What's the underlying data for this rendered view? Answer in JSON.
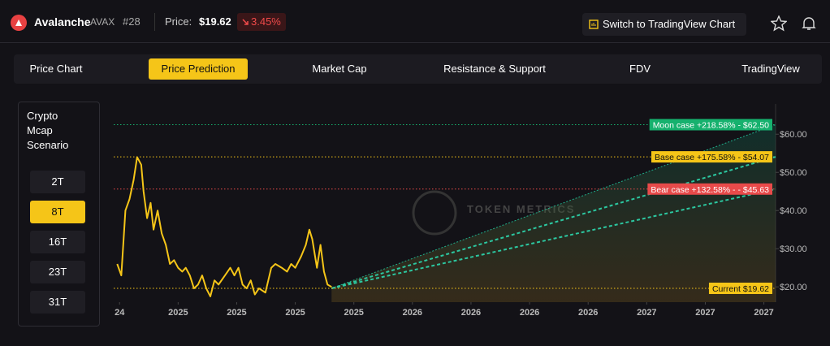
{
  "header": {
    "name": "Avalanche",
    "symbol": "AVAX",
    "rank": "#28",
    "price_label": "Price:",
    "price": "$19.62",
    "change": "3.45%",
    "button": "Switch to TradingView Chart"
  },
  "tabs": {
    "items": [
      "Price Chart",
      "Price Prediction",
      "Market Cap",
      "Resistance & Support",
      "FDV",
      "TradingView"
    ],
    "active": 1
  },
  "scenario": {
    "title": "Crypto Mcap Scenario",
    "options": [
      "2T",
      "8T",
      "16T",
      "23T",
      "31T"
    ],
    "active": 1
  },
  "chart_data": {
    "type": "line",
    "watermark": "TOKEN METRICS",
    "x": [
      -0.04,
      0.03,
      0.1,
      0.17,
      0.24,
      0.3,
      0.37,
      0.41,
      0.47,
      0.53,
      0.58,
      0.65,
      0.72,
      0.79,
      0.86,
      0.93,
      1.0,
      1.07,
      1.13,
      1.2,
      1.27,
      1.34,
      1.41,
      1.48,
      1.55,
      1.62,
      1.69,
      1.8,
      1.89,
      1.96,
      2.03,
      2.1,
      2.17,
      2.24,
      2.31,
      2.38,
      2.49,
      2.59,
      2.66,
      2.77,
      2.86,
      2.93,
      3.0,
      3.1,
      3.18,
      3.24,
      3.29,
      3.37,
      3.43,
      3.49,
      3.55,
      3.62
    ],
    "series": [
      {
        "color": "#f5c518",
        "values": [
          26,
          23,
          40,
          43,
          48,
          54,
          52,
          45,
          38,
          42,
          35,
          40,
          34,
          31,
          26,
          27,
          25,
          24,
          25,
          23,
          19.6,
          20.6,
          23,
          19.6,
          17.5,
          21.7,
          20.6,
          23,
          25,
          23,
          25,
          20.6,
          19.6,
          21.7,
          18,
          19.6,
          18.5,
          25,
          26,
          25,
          24,
          26,
          25,
          28,
          31,
          35,
          32.5,
          25,
          31,
          24,
          20.6,
          20
        ]
      }
    ],
    "current": {
      "label": "Current $19.62",
      "value": 19.62,
      "color": "#f5c518"
    },
    "levels": [
      {
        "label": "Moon case +218.58% - $62.50",
        "value": 62.5,
        "color": "#16b16e"
      },
      {
        "label": "Base case +175.58% - $54.07",
        "value": 54.07,
        "color": "#f5c518"
      },
      {
        "label": "Bear case +132.58% - - $45.63",
        "value": 45.63,
        "color": "#e84a4a"
      }
    ],
    "xlim": [
      -0.1,
      11.2
    ],
    "xticks": [
      {
        "value": 0,
        "label": "24"
      },
      {
        "value": 1,
        "label": "2025"
      },
      {
        "value": 2,
        "label": "2025"
      },
      {
        "value": 3,
        "label": "2025"
      },
      {
        "value": 4,
        "label": "2025"
      },
      {
        "value": 5,
        "label": "2026"
      },
      {
        "value": 6,
        "label": "2026"
      },
      {
        "value": 7,
        "label": "2026"
      },
      {
        "value": 8,
        "label": "2026"
      },
      {
        "value": 9,
        "label": "2027"
      },
      {
        "value": 10,
        "label": "2027"
      },
      {
        "value": 11,
        "label": "2027"
      }
    ],
    "ylim": [
      16,
      67.5
    ],
    "yticks": [
      {
        "value": 20,
        "label": "$20.00"
      },
      {
        "value": 30,
        "label": "$30.00"
      },
      {
        "value": 40,
        "label": "$40.00"
      },
      {
        "value": 50,
        "label": "$50.00"
      },
      {
        "value": 60,
        "label": "$60.00"
      }
    ]
  }
}
